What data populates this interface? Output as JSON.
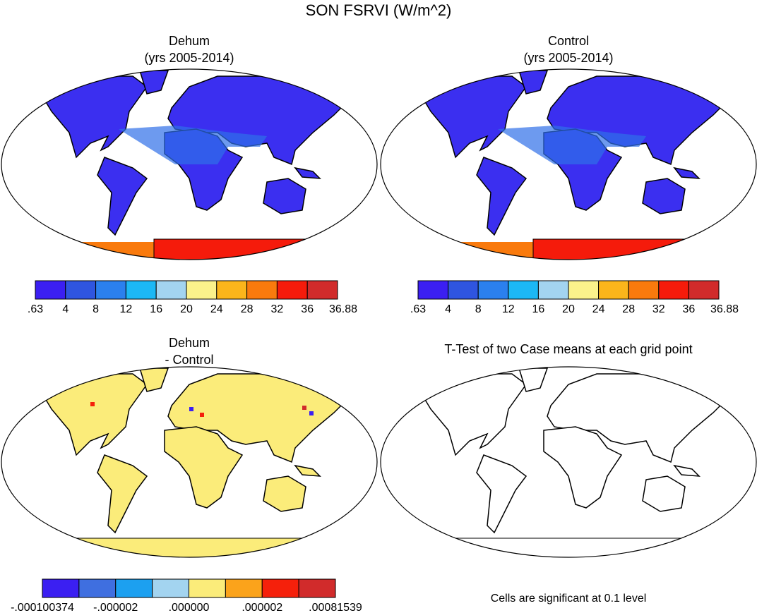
{
  "title": "SON FSRVI (W/m^2)",
  "panels": [
    {
      "title": "Dehum",
      "subtitle": "(yrs 2005-2014)",
      "colorbar": {
        "colors": [
          "#3b1ff2",
          "#2f55e0",
          "#2b80ee",
          "#1cb8f5",
          "#a3d4f0",
          "#fbf28b",
          "#fbb51b",
          "#f97a0d",
          "#f51b0b",
          "#d12b2b"
        ],
        "labels": [
          ".63",
          "4",
          "8",
          "12",
          "16",
          "20",
          "24",
          "28",
          "32",
          "36",
          "36.88"
        ]
      }
    },
    {
      "title": "Control",
      "subtitle": "(yrs 2005-2014)",
      "colorbar": {
        "colors": [
          "#3b1ff2",
          "#2f55e0",
          "#2b80ee",
          "#1cb8f5",
          "#a3d4f0",
          "#fbf28b",
          "#fbb51b",
          "#f97a0d",
          "#f51b0b",
          "#d12b2b"
        ],
        "labels": [
          ".63",
          "4",
          "8",
          "12",
          "16",
          "20",
          "24",
          "28",
          "32",
          "36",
          "36.88"
        ]
      }
    },
    {
      "title": "Dehum",
      "subtitle": "- Control",
      "colorbar": {
        "colors": [
          "#3b1ff2",
          "#3f6fe0",
          "#1ca0f0",
          "#a3d4f0",
          "#fbec7a",
          "#fba31b",
          "#f5200b",
          "#d12b2b"
        ],
        "labels": [
          "-.000100374",
          "-.000002",
          ".000000",
          ".000002",
          ".00081539"
        ]
      }
    },
    {
      "title": "T-Test of two Case means at each grid point",
      "note": "Cells are significant at 0.1 level"
    }
  ]
}
